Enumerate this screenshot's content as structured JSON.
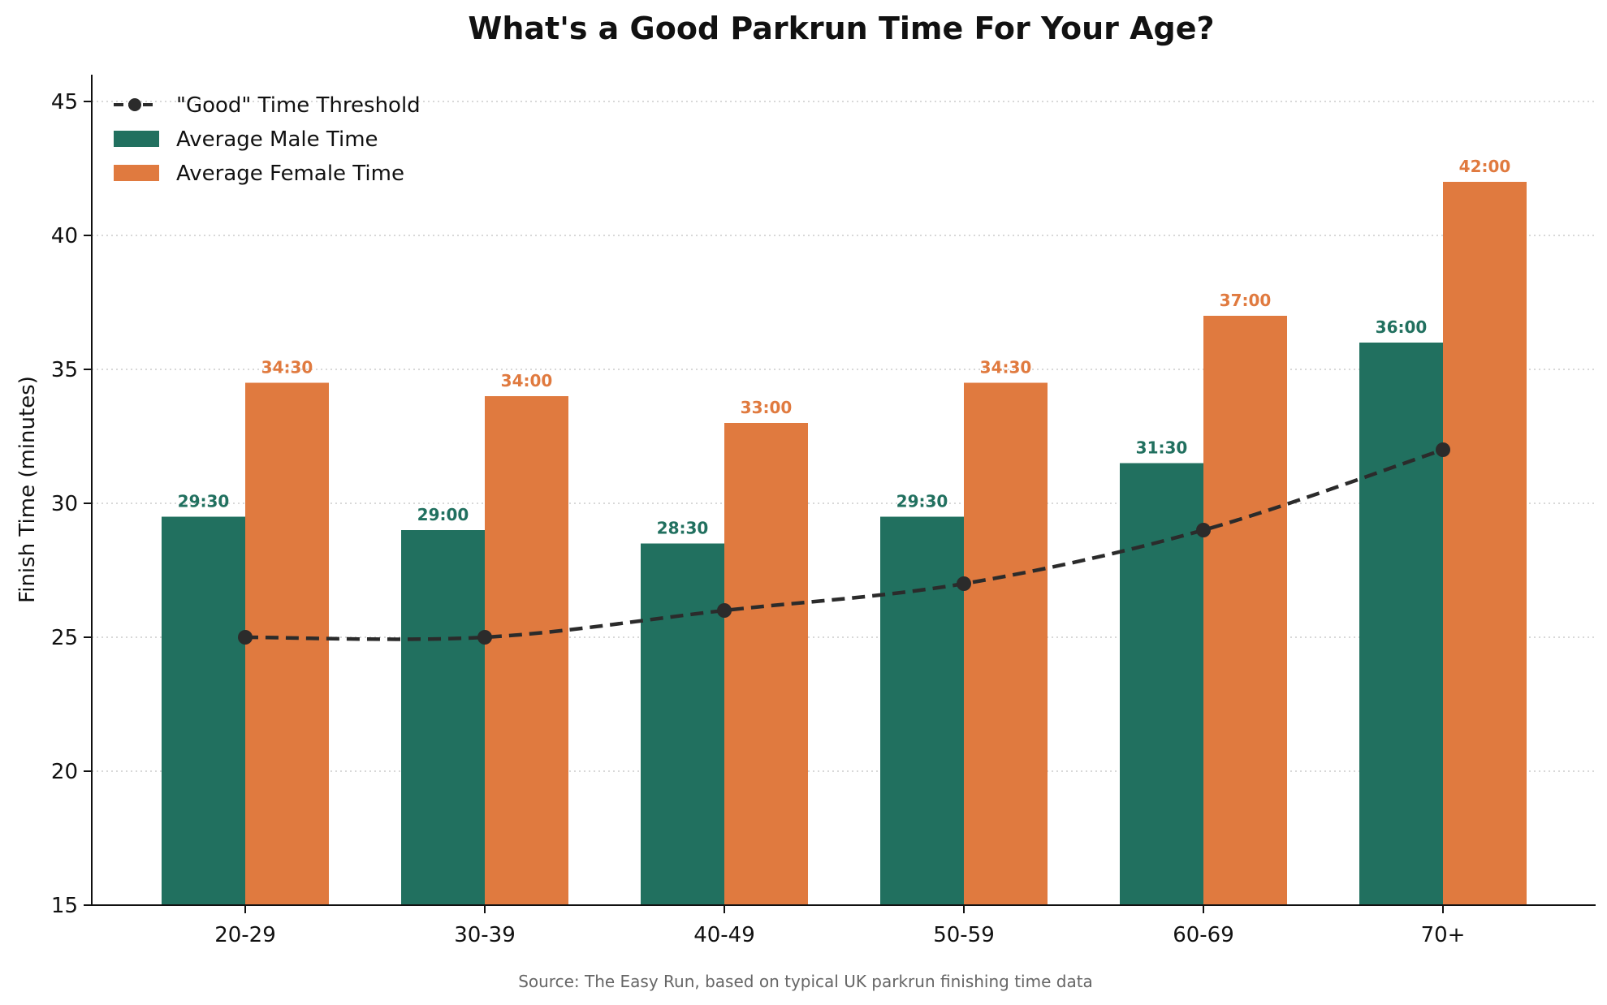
{
  "chart_data": {
    "type": "bar",
    "title": "What's a Good Parkrun Time For Your Age?",
    "xlabel": "",
    "ylabel": "Finish Time (minutes)",
    "ylim": [
      15,
      46
    ],
    "yticks": [
      15,
      20,
      25,
      30,
      35,
      40,
      45
    ],
    "grid": "horizontal dotted",
    "legend_position": "top-left",
    "categories": [
      "20-29",
      "30-39",
      "40-49",
      "50-59",
      "60-69",
      "70+"
    ],
    "series": [
      {
        "name": "Average Male Time",
        "kind": "bar",
        "color": "#21705f",
        "values": [
          29.5,
          29.0,
          28.5,
          29.5,
          31.5,
          36.0
        ],
        "labels": [
          "29:30",
          "29:00",
          "28:30",
          "29:30",
          "31:30",
          "36:00"
        ]
      },
      {
        "name": "Average Female Time",
        "kind": "bar",
        "color": "#e07a3f",
        "values": [
          34.5,
          34.0,
          33.0,
          34.5,
          37.0,
          42.0
        ],
        "labels": [
          "34:30",
          "34:00",
          "33:00",
          "34:30",
          "37:00",
          "42:00"
        ]
      },
      {
        "name": "\"Good\" Time Threshold",
        "kind": "line",
        "style": "dashed with circle markers",
        "color": "#2b2b2b",
        "values": [
          25,
          25,
          26,
          27,
          29,
          32
        ]
      }
    ],
    "source": "Source: The Easy Run, based on typical UK parkrun finishing time data"
  }
}
